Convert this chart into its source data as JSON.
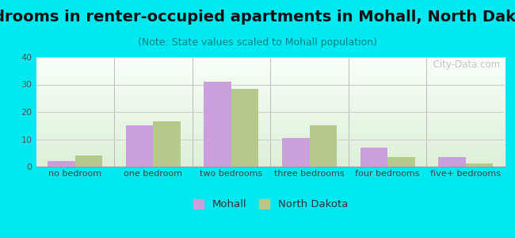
{
  "title": "Bedrooms in renter-occupied apartments in Mohall, North Dakota",
  "subtitle": "(Note: State values scaled to Mohall population)",
  "categories": [
    "no bedroom",
    "one bedroom",
    "two bedrooms",
    "three bedrooms",
    "four bedrooms",
    "five+ bedrooms"
  ],
  "mohall_values": [
    2,
    15,
    31,
    10.5,
    7,
    3.5
  ],
  "nd_values": [
    4,
    16.5,
    28.5,
    15,
    3.5,
    1.2
  ],
  "mohall_color": "#c9a0dc",
  "nd_color": "#b5c98a",
  "ylim": [
    0,
    40
  ],
  "yticks": [
    0,
    10,
    20,
    30,
    40
  ],
  "bar_width": 0.35,
  "background_outer": "#00e8f0",
  "grid_color": "#cccccc",
  "watermark": "  City-Data.com",
  "legend_mohall": "Mohall",
  "legend_nd": "North Dakota",
  "title_fontsize": 14,
  "subtitle_fontsize": 9,
  "tick_label_fontsize": 8
}
